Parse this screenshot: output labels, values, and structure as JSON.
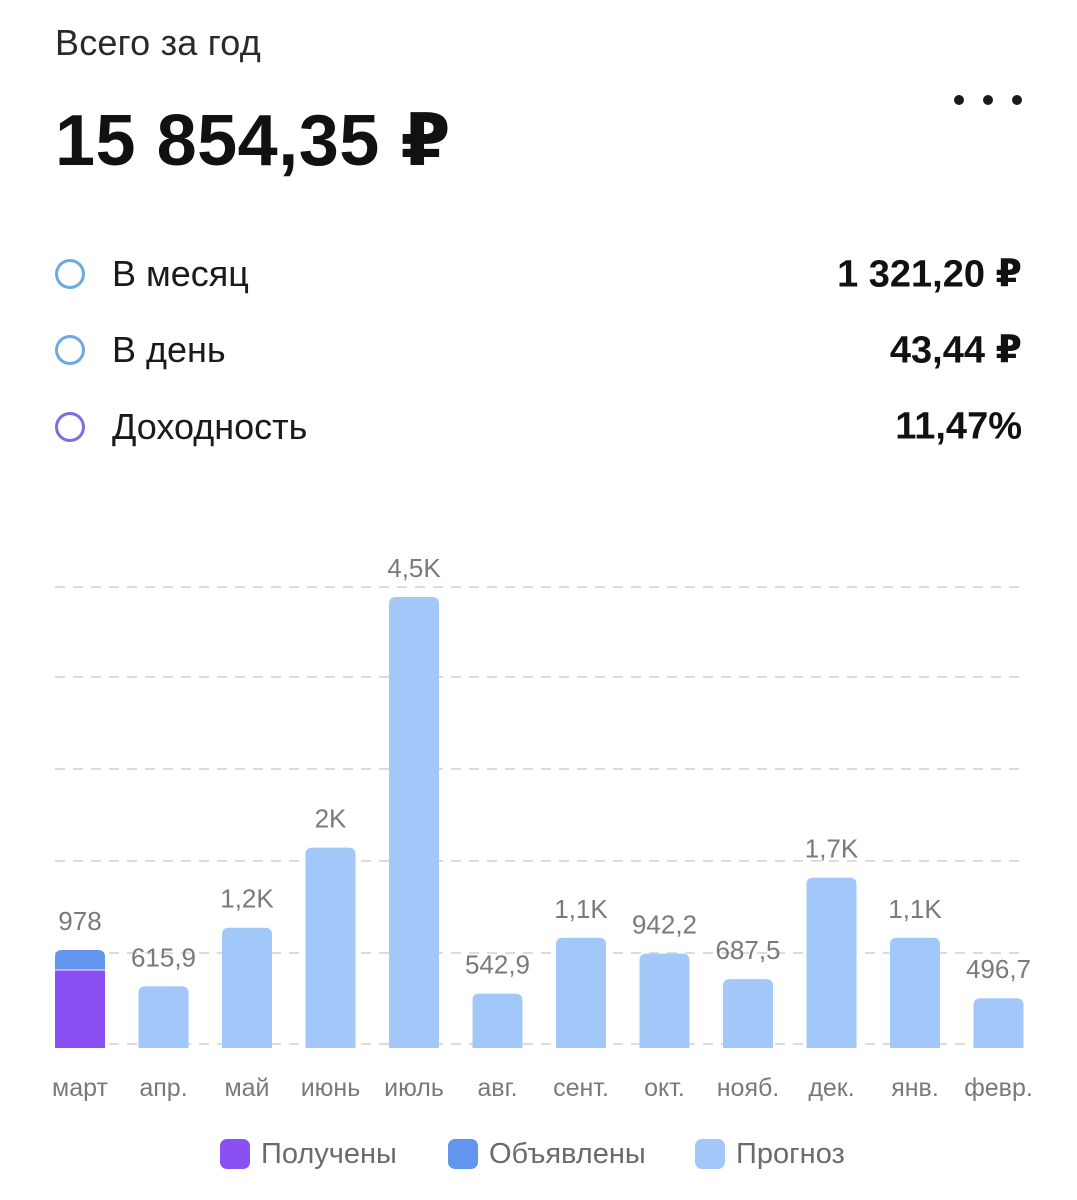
{
  "header": {
    "subtitle": "Всего за год",
    "total": "15 854,35 ₽",
    "menu_icon": "more-horizontal-icon"
  },
  "stats": [
    {
      "label": "В месяц",
      "value": "1 321,20 ₽",
      "color": "#6aa9e6"
    },
    {
      "label": "В день",
      "value": "43,44 ₽",
      "color": "#6aa9e6"
    },
    {
      "label": "Доходность",
      "value": "11,47%",
      "color": "#7b6ee0"
    }
  ],
  "colors": {
    "received": "#8a50f2",
    "announced": "#6395ee",
    "forecast": "#a1c8f9"
  },
  "chart_data": {
    "type": "bar",
    "stacked": true,
    "categories": [
      "март",
      "апр.",
      "май",
      "июнь",
      "июль",
      "авг.",
      "сент.",
      "окт.",
      "нояб.",
      "дек.",
      "янв.",
      "февр."
    ],
    "value_labels": [
      "978",
      "615,9",
      "1,2K",
      "2K",
      "4,5K",
      "542,9",
      "1,1K",
      "942,2",
      "687,5",
      "1,7K",
      "1,1K",
      "496,7"
    ],
    "series": [
      {
        "name": "Получены",
        "color": "#8a50f2",
        "values": [
          778,
          0,
          0,
          0,
          0,
          0,
          0,
          0,
          0,
          0,
          0,
          0
        ]
      },
      {
        "name": "Объявлены",
        "color": "#6395ee",
        "values": [
          200,
          0,
          0,
          0,
          0,
          0,
          0,
          0,
          0,
          0,
          0,
          0
        ]
      },
      {
        "name": "Прогноз",
        "color": "#a1c8f9",
        "values": [
          0,
          615.9,
          1200,
          2000,
          4500,
          542.9,
          1100,
          942.2,
          687.5,
          1700,
          1100,
          496.7
        ]
      }
    ],
    "ylim": [
      0,
      4600
    ],
    "grid": true,
    "legend_position": "bottom"
  },
  "legend": [
    {
      "label": "Получены",
      "color": "#8a50f2"
    },
    {
      "label": "Объявлены",
      "color": "#6395ee"
    },
    {
      "label": "Прогноз",
      "color": "#a1c8f9"
    }
  ]
}
